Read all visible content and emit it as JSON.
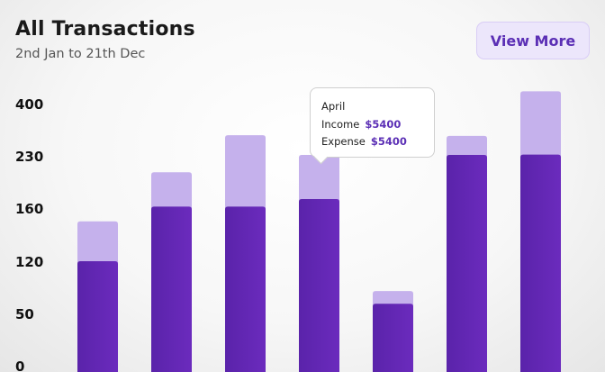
{
  "header": {
    "title": "All Transactions",
    "subtitle": "2nd Jan to 21th Dec",
    "view_more_label": "View More"
  },
  "tooltip": {
    "month": "April",
    "income_label": "Income",
    "income_value": "$5400",
    "expense_label": "Expense",
    "expense_value": "$5400"
  },
  "colors": {
    "dark_bar": "#5c26ad",
    "light_bar": "#c5b1ec",
    "accent": "#5b2fb5"
  },
  "chart_data": {
    "type": "bar",
    "stacked": true,
    "y_ticks": [
      "0",
      "50",
      "120",
      "160",
      "230",
      "400"
    ],
    "series": [
      {
        "values": [
          120,
          162,
          162,
          172,
          63,
          233,
          234
        ]
      },
      {
        "values": [
          150,
          208,
          297,
          233,
          80,
          295,
          440
        ]
      }
    ],
    "tooltip_bar_index": 3,
    "grid": false,
    "legend": "none"
  }
}
